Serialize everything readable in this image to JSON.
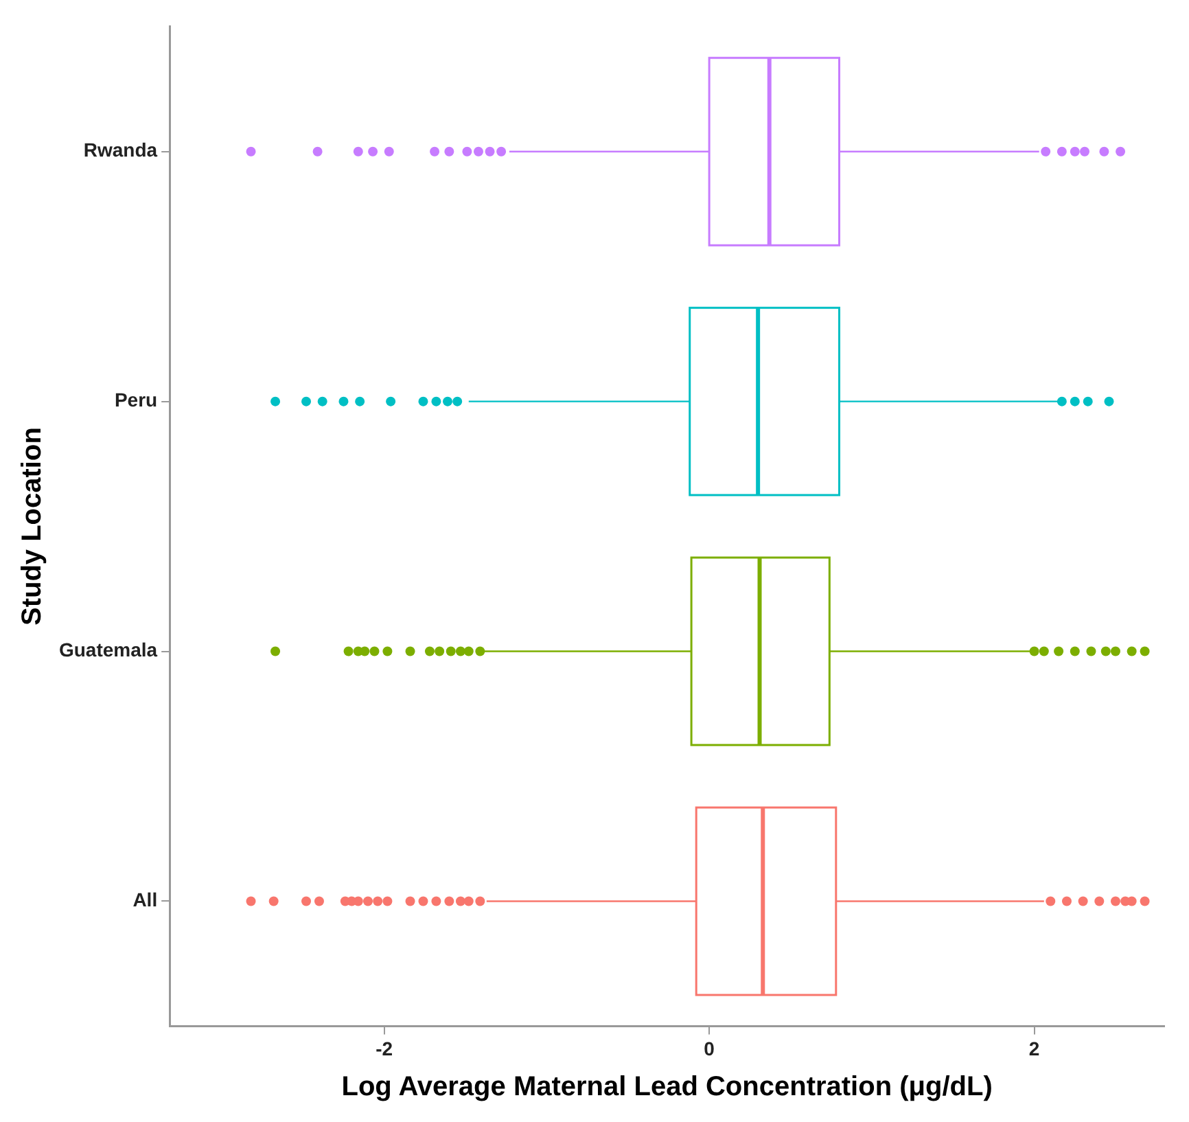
{
  "chart_data": {
    "type": "box",
    "orientation": "horizontal",
    "xlabel": "Log Average Maternal Lead Concentration (μg/dL)",
    "ylabel": "Study Location",
    "categories": [
      "Rwanda",
      "Peru",
      "Guatemala",
      "All"
    ],
    "colors": [
      "#c77cff",
      "#00bfc4",
      "#7cae00",
      "#f8766d"
    ],
    "xlim": [
      -3.32,
      2.8
    ],
    "xticks": [
      -2,
      0,
      2
    ],
    "grid": false,
    "boxes": [
      {
        "low": -1.23,
        "q1": 0.0,
        "median": 0.37,
        "q3": 0.8,
        "high": 2.03,
        "outliers": [
          -2.82,
          -2.41,
          -2.16,
          -2.07,
          -1.97,
          -1.69,
          -1.6,
          -1.49,
          -1.42,
          -1.35,
          -1.28,
          2.07,
          2.17,
          2.25,
          2.31,
          2.43,
          2.53
        ]
      },
      {
        "low": -1.48,
        "q1": -0.12,
        "median": 0.3,
        "q3": 0.8,
        "high": 2.15,
        "outliers": [
          -2.67,
          -2.48,
          -2.38,
          -2.25,
          -2.15,
          -1.96,
          -1.76,
          -1.68,
          -1.61,
          -1.55,
          2.17,
          2.25,
          2.33,
          2.46
        ]
      },
      {
        "low": -1.39,
        "q1": -0.11,
        "median": 0.31,
        "q3": 0.74,
        "high": 1.98,
        "outliers": [
          -2.67,
          -2.22,
          -2.16,
          -2.12,
          -2.06,
          -1.98,
          -1.84,
          -1.72,
          -1.66,
          -1.59,
          -1.53,
          -1.48,
          -1.41,
          2.0,
          2.06,
          2.15,
          2.25,
          2.35,
          2.44,
          2.5,
          2.6,
          2.68
        ]
      },
      {
        "low": -1.37,
        "q1": -0.08,
        "median": 0.33,
        "q3": 0.78,
        "high": 2.06,
        "outliers": [
          -2.82,
          -2.68,
          -2.48,
          -2.4,
          -2.24,
          -2.2,
          -2.16,
          -2.1,
          -2.04,
          -1.98,
          -1.84,
          -1.76,
          -1.68,
          -1.6,
          -1.53,
          -1.48,
          -1.41,
          2.1,
          2.2,
          2.3,
          2.4,
          2.5,
          2.56,
          2.6,
          2.68
        ]
      }
    ]
  }
}
